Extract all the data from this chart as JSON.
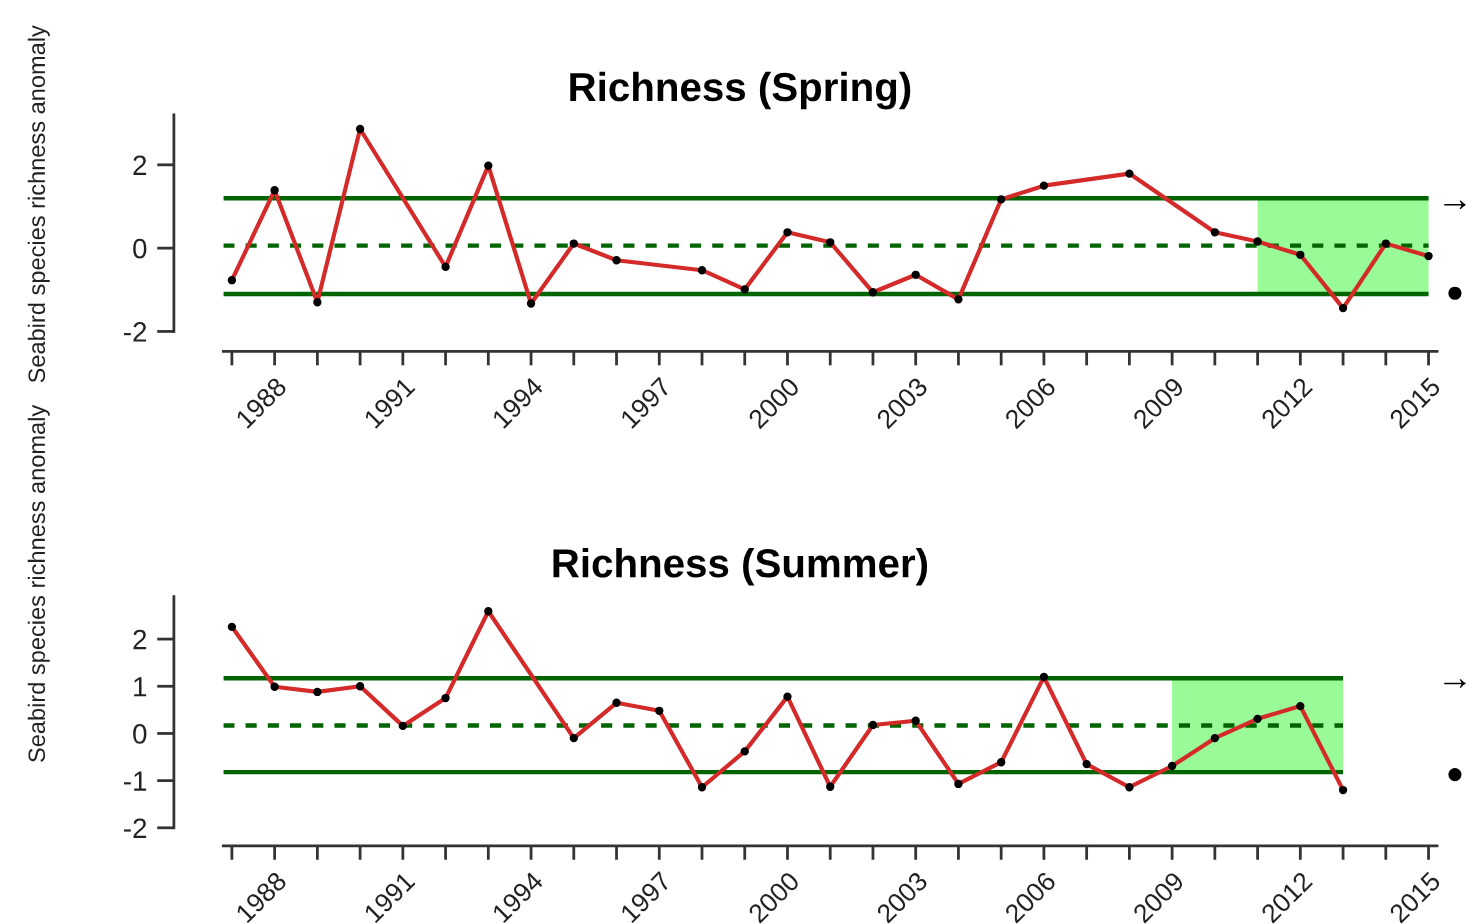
{
  "chart_data": [
    {
      "type": "line",
      "title": "Richness (Spring)",
      "ylabel": "Seabird species richness anomaly",
      "series": [
        {
          "color": "#d42a2a",
          "x": [
            1987,
            1988,
            1989,
            1990,
            1992,
            1993,
            1994,
            1995,
            1996,
            1998,
            1999,
            2000,
            2001,
            2002,
            2003,
            2004,
            2005,
            2006,
            2008,
            2010,
            2011,
            2012,
            2013,
            2014,
            2015
          ],
          "values": [
            -0.77,
            1.39,
            -1.3,
            2.86,
            -0.45,
            1.98,
            -1.33,
            0.11,
            -0.29,
            -0.53,
            -0.99,
            0.38,
            0.14,
            -1.06,
            -0.64,
            -1.23,
            1.17,
            1.5,
            1.79,
            0.38,
            0.16,
            -0.16,
            -1.44,
            0.11,
            -0.19
          ]
        }
      ],
      "marker": "circle",
      "line_style": "solid",
      "xlim": [
        1986.8,
        2015.2
      ],
      "xticks": [
        {
          "value": 1987,
          "label": null
        },
        1988,
        {
          "value": 1989,
          "label": null
        },
        {
          "value": 1990,
          "label": null
        },
        1991,
        {
          "value": 1992,
          "label": null
        },
        {
          "value": 1993,
          "label": null
        },
        1994,
        {
          "value": 1995,
          "label": null
        },
        {
          "value": 1996,
          "label": null
        },
        1997,
        {
          "value": 1998,
          "label": null
        },
        {
          "value": 1999,
          "label": null
        },
        2000,
        {
          "value": 2001,
          "label": null
        },
        {
          "value": 2002,
          "label": null
        },
        2003,
        {
          "value": 2004,
          "label": null
        },
        {
          "value": 2005,
          "label": null
        },
        2006,
        {
          "value": 2007,
          "label": null
        },
        {
          "value": 2008,
          "label": null
        },
        2009,
        {
          "value": 2010,
          "label": null
        },
        {
          "value": 2011,
          "label": null
        },
        2012,
        {
          "value": 2013,
          "label": null
        },
        {
          "value": 2014,
          "label": null
        },
        2015
      ],
      "ylim": [
        -2,
        3.2
      ],
      "yticks": [
        -2,
        0,
        2
      ],
      "ref_lines": [
        {
          "axis": "y",
          "value": 1.2,
          "color": "#006400",
          "line_style": "solid"
        },
        {
          "axis": "y",
          "value": 0.06,
          "color": "#006400",
          "line_style": "dashed"
        },
        {
          "axis": "y",
          "value": -1.1,
          "color": "#006400",
          "line_style": "solid"
        }
      ],
      "bands": [
        {
          "axis": "x",
          "from": 2011,
          "to": 2015,
          "color": "#98fb98"
        }
      ],
      "annotations": [
        "→",
        "●"
      ]
    },
    {
      "type": "line",
      "title": "Richness (Summer)",
      "ylabel": "Seabird species richness anomaly",
      "series": [
        {
          "color": "#d42a2a",
          "x": [
            1987,
            1988,
            1989,
            1990,
            1991,
            1992,
            1993,
            1995,
            1996,
            1997,
            1998,
            1999,
            2000,
            2001,
            2002,
            2003,
            2004,
            2005,
            2006,
            2007,
            2008,
            2009,
            2010,
            2011,
            2012,
            2013
          ],
          "values": [
            2.26,
            0.99,
            0.88,
            1.0,
            0.16,
            0.75,
            2.59,
            -0.1,
            0.65,
            0.48,
            -1.14,
            -0.38,
            0.78,
            -1.13,
            0.18,
            0.27,
            -1.07,
            -0.61,
            1.2,
            -0.65,
            -1.14,
            -0.69,
            -0.1,
            0.31,
            0.58,
            -1.2
          ]
        }
      ],
      "marker": "circle",
      "line_style": "solid",
      "xlim": [
        1986.8,
        2015.2
      ],
      "xticks": [
        {
          "value": 1987,
          "label": null
        },
        1988,
        {
          "value": 1989,
          "label": null
        },
        {
          "value": 1990,
          "label": null
        },
        1991,
        {
          "value": 1992,
          "label": null
        },
        {
          "value": 1993,
          "label": null
        },
        1994,
        {
          "value": 1995,
          "label": null
        },
        {
          "value": 1996,
          "label": null
        },
        1997,
        {
          "value": 1998,
          "label": null
        },
        {
          "value": 1999,
          "label": null
        },
        2000,
        {
          "value": 2001,
          "label": null
        },
        {
          "value": 2002,
          "label": null
        },
        2003,
        {
          "value": 2004,
          "label": null
        },
        {
          "value": 2005,
          "label": null
        },
        2006,
        {
          "value": 2007,
          "label": null
        },
        {
          "value": 2008,
          "label": null
        },
        2009,
        {
          "value": 2010,
          "label": null
        },
        {
          "value": 2011,
          "label": null
        },
        2012,
        {
          "value": 2013,
          "label": null
        },
        {
          "value": 2014,
          "label": null
        },
        2015
      ],
      "ylim": [
        -2,
        2.9
      ],
      "yticks": [
        -2,
        -1,
        0,
        1,
        2
      ],
      "ref_lines": [
        {
          "axis": "y",
          "value": 1.17,
          "color": "#006400",
          "line_style": "solid"
        },
        {
          "axis": "y",
          "value": 0.17,
          "color": "#006400",
          "line_style": "dashed"
        },
        {
          "axis": "y",
          "value": -0.82,
          "color": "#006400",
          "line_style": "solid"
        }
      ],
      "bands": [
        {
          "axis": "x",
          "from": 2009,
          "to": 2013,
          "color": "#98fb98"
        }
      ],
      "annotations": [
        "→",
        "●"
      ]
    }
  ]
}
